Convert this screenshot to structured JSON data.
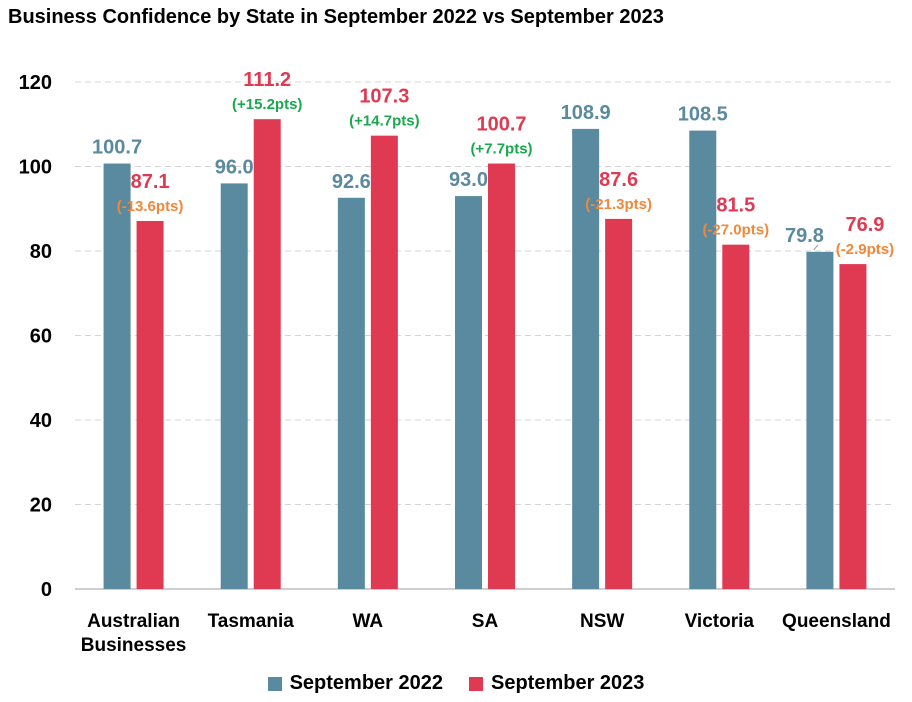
{
  "chart_data": {
    "type": "bar",
    "title": "Business Confidence by State in September 2022 vs September 2023",
    "categories": [
      [
        "Australian",
        "Businesses"
      ],
      [
        "Tasmania"
      ],
      [
        "WA"
      ],
      [
        "SA"
      ],
      [
        "NSW"
      ],
      [
        "Victoria"
      ],
      [
        "Queensland"
      ]
    ],
    "series": [
      {
        "name": "September 2022",
        "color": "#5a8aa0",
        "values": [
          100.7,
          96.0,
          92.6,
          93.0,
          108.9,
          108.5,
          79.8
        ],
        "labels": [
          "100.7",
          "96.0",
          "92.6",
          "93.0",
          "108.9",
          "108.5",
          "79.8"
        ]
      },
      {
        "name": "September 2023",
        "color": "#e03a52",
        "values": [
          87.1,
          111.2,
          107.3,
          100.7,
          87.6,
          81.5,
          76.9
        ],
        "labels": [
          "87.1",
          "111.2",
          "107.3",
          "100.7",
          "87.6",
          "81.5",
          "76.9"
        ]
      }
    ],
    "changes": [
      "(-13.6pts)",
      "(+15.2pts)",
      "(+14.7pts)",
      "(+7.7pts)",
      "(-21.3pts)",
      "(-27.0pts)",
      "(-2.9pts)"
    ],
    "change_colors": {
      "negative": "#f0883a",
      "positive": "#1aa84e"
    },
    "ylim": [
      0,
      120
    ],
    "yticks": [
      "0",
      "20",
      "40",
      "60",
      "80",
      "100",
      "120"
    ],
    "grid": true,
    "legend_position": "bottom"
  }
}
